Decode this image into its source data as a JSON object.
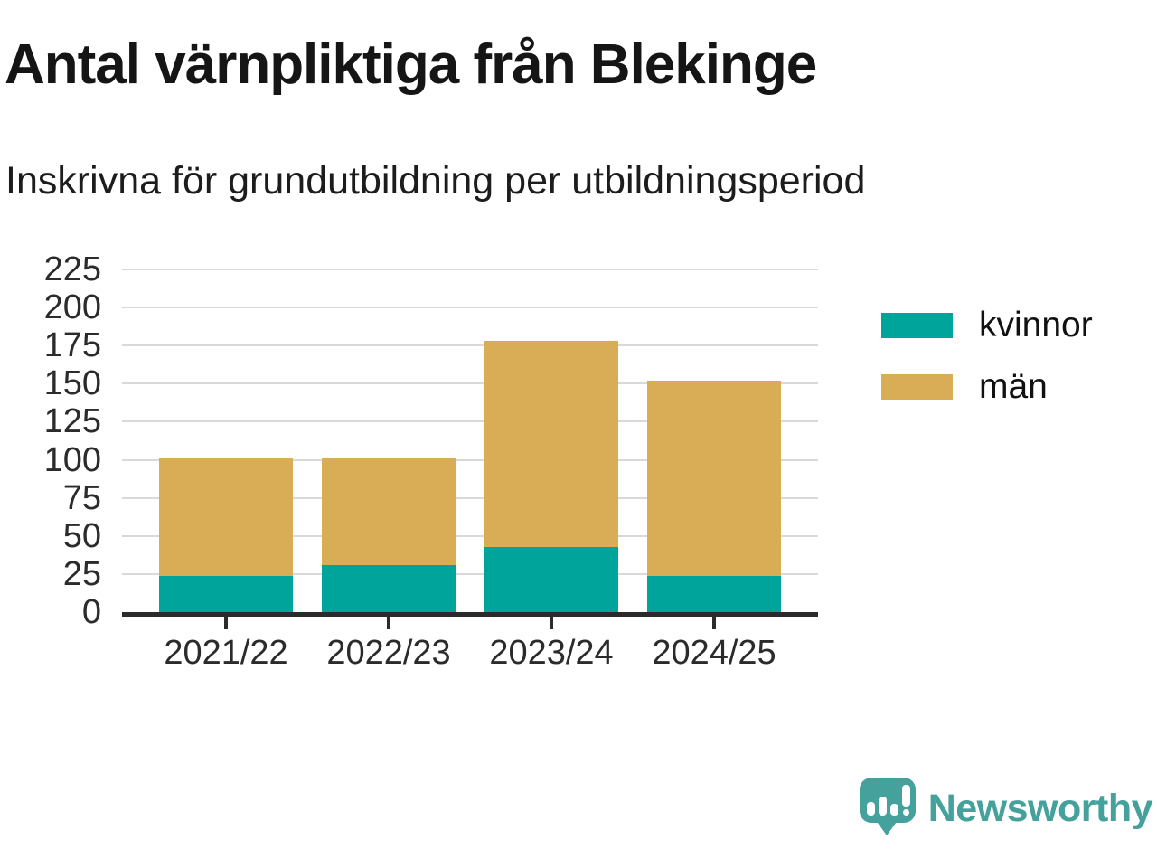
{
  "title": "Antal värnpliktiga från Blekinge",
  "subtitle": "Inskrivna för grundutbildning per utbildningsperiod",
  "chart_data": {
    "type": "bar",
    "stacked": true,
    "categories": [
      "2021/22",
      "2022/23",
      "2023/24",
      "2024/25"
    ],
    "series": [
      {
        "name": "kvinnor",
        "color": "#00a49b",
        "values": [
          24,
          31,
          43,
          24
        ]
      },
      {
        "name": "män",
        "color": "#d9ad56",
        "values": [
          77,
          70,
          135,
          128
        ]
      }
    ],
    "totals": [
      101,
      101,
      178,
      152
    ],
    "title": "Antal värnpliktiga från Blekinge",
    "subtitle": "Inskrivna för grundutbildning per utbildningsperiod",
    "xlabel": "",
    "ylabel": "",
    "ylim": [
      0,
      225
    ],
    "ytick_step": 25,
    "grid": true,
    "legend_position": "right"
  },
  "legend": {
    "items": [
      {
        "label": "kvinnor",
        "color": "#00a49b"
      },
      {
        "label": "män",
        "color": "#d9ad56"
      }
    ]
  },
  "branding": {
    "logo_text": "Newsworthy",
    "logo_icon": "speech-bubble-bar-chart-icon"
  },
  "colors": {
    "accent_brand": "#44a19b",
    "axis": "#2b2b2b",
    "grid": "#d9d9d9",
    "text_dark": "#151515",
    "background": "#ffffff"
  }
}
